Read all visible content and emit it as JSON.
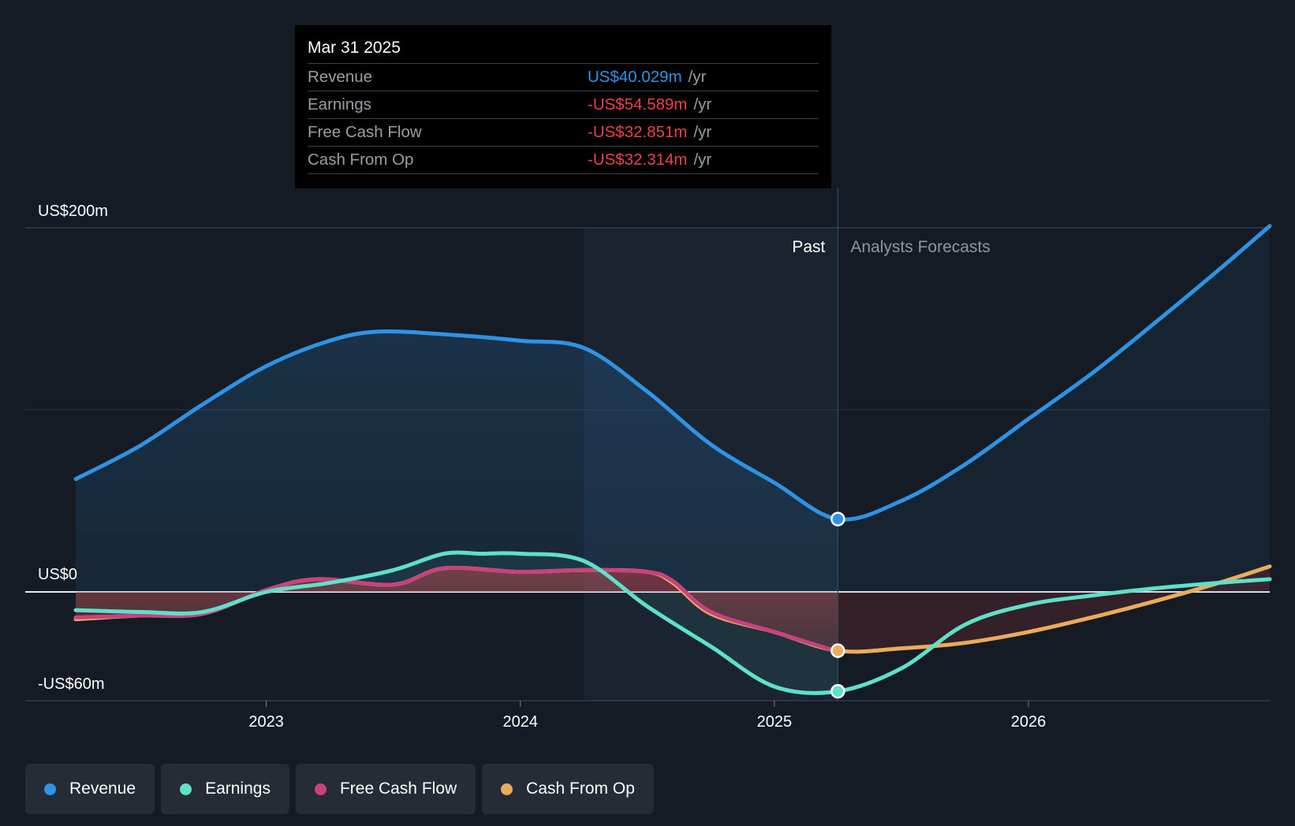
{
  "chart_data": {
    "type": "line",
    "y_axis_labels": [
      "US$200m",
      "US$0",
      "-US$60m"
    ],
    "ylim": [
      -60,
      200
    ],
    "x_ticks": [
      "2023",
      "2024",
      "2025",
      "2026"
    ],
    "x_range": [
      2022.25,
      2026.95
    ],
    "divider_date": 2025.25,
    "highlight_start": 2024.25,
    "past_label": "Past",
    "forecast_label": "Analysts Forecasts",
    "series": [
      {
        "name": "Revenue",
        "color": "#2e93e4",
        "x": [
          2022.25,
          2022.5,
          2022.75,
          2023.0,
          2023.25,
          2023.45,
          2023.75,
          2024.0,
          2024.25,
          2024.5,
          2024.75,
          2025.0,
          2025.25,
          2025.5,
          2025.75,
          2026.0,
          2026.25,
          2026.5,
          2026.75,
          2026.95
        ],
        "values": [
          62,
          80,
          103,
          124,
          138,
          143,
          141,
          138,
          134,
          110,
          81,
          60,
          40,
          50,
          70,
          95,
          120,
          148,
          177,
          201
        ]
      },
      {
        "name": "Earnings",
        "color": "#5ee0cb",
        "x": [
          2022.25,
          2022.5,
          2022.75,
          2023.0,
          2023.25,
          2023.5,
          2023.7,
          2023.85,
          2024.0,
          2024.25,
          2024.5,
          2024.75,
          2025.0,
          2025.25,
          2025.5,
          2025.75,
          2026.0,
          2026.25,
          2026.5,
          2026.75,
          2026.95
        ],
        "values": [
          -10,
          -11,
          -11,
          0,
          5,
          12,
          21,
          21,
          21,
          17,
          -8,
          -30,
          -52,
          -54.589,
          -42,
          -18,
          -7,
          -2,
          2,
          5,
          7
        ]
      },
      {
        "name": "Free Cash Flow",
        "color": "#c9427f",
        "x": [
          2022.25,
          2022.5,
          2022.75,
          2023.0,
          2023.2,
          2023.5,
          2023.7,
          2024.0,
          2024.25,
          2024.5,
          2024.6,
          2024.75,
          2025.0,
          2025.25
        ],
        "values": [
          -14,
          -13,
          -12,
          1,
          7,
          4,
          13,
          11,
          12,
          11,
          6,
          -11,
          -22,
          -32.851
        ]
      },
      {
        "name": "Cash From Op",
        "color": "#ebac5a",
        "x": [
          2022.25,
          2022.5,
          2022.75,
          2023.0,
          2023.2,
          2023.5,
          2023.7,
          2024.0,
          2024.25,
          2024.5,
          2024.6,
          2024.75,
          2025.0,
          2025.25,
          2025.5,
          2025.75,
          2026.0,
          2026.25,
          2026.5,
          2026.75,
          2026.95
        ],
        "values": [
          -15,
          -13,
          -12,
          1,
          7,
          4,
          13,
          11,
          12,
          11,
          5,
          -12,
          -22,
          -32.314,
          -31,
          -28,
          -22,
          -14,
          -5,
          5,
          14
        ]
      }
    ]
  },
  "tooltip": {
    "date": "Mar 31 2025",
    "unit": "/yr",
    "rows": [
      {
        "label": "Revenue",
        "value": "US$40.029m",
        "color": "#2e93e4"
      },
      {
        "label": "Earnings",
        "value": "-US$54.589m",
        "color": "#e8434b"
      },
      {
        "label": "Free Cash Flow",
        "value": "-US$32.851m",
        "color": "#e8434b"
      },
      {
        "label": "Cash From Op",
        "value": "-US$32.314m",
        "color": "#e8434b"
      }
    ]
  },
  "legend": [
    {
      "label": "Revenue",
      "color": "#2e93e4"
    },
    {
      "label": "Earnings",
      "color": "#5ee0cb"
    },
    {
      "label": "Free Cash Flow",
      "color": "#c9427f"
    },
    {
      "label": "Cash From Op",
      "color": "#ebac5a"
    }
  ]
}
